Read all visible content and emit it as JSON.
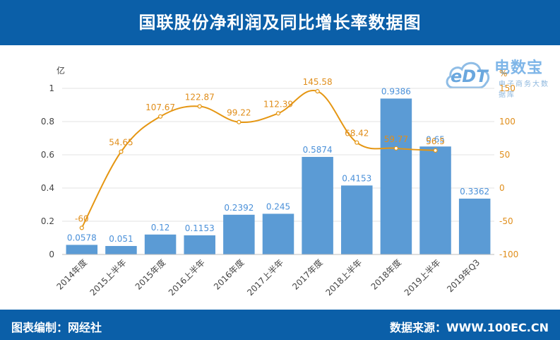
{
  "header": {
    "title": "国联股份净利润及同比增长率数据图"
  },
  "footer": {
    "left": "图表编制：网经社",
    "right": "数据来源：WWW.100EC.CN"
  },
  "logo": {
    "brand": "电数宝",
    "sub": "电子商务大数据库",
    "mark": "eDT"
  },
  "colors": {
    "bar": "#5b9bd5",
    "line": "#e59612",
    "header": "#0b5fa8"
  },
  "chart_data": {
    "type": "bar",
    "title": "国联股份净利润及同比增长率数据图",
    "categories": [
      "2014年度",
      "2015上半年",
      "2015年度",
      "2016上半年",
      "2016年度",
      "2017上半年",
      "2017年度",
      "2018上半年",
      "2018年度",
      "2019上半年",
      "2019年Q3"
    ],
    "series": [
      {
        "type": "bar",
        "axis": "left",
        "values": [
          0.0578,
          0.051,
          0.12,
          0.1153,
          0.2392,
          0.245,
          0.5874,
          0.4153,
          0.9386,
          0.65,
          0.3362
        ],
        "labels": [
          "0.0578",
          "0.051",
          "0.12",
          "0.1153",
          "0.2392",
          "0.245",
          "0.5874",
          "0.4153",
          "0.9386",
          "0.65",
          "0.3362"
        ]
      },
      {
        "type": "line",
        "axis": "right",
        "values": [
          -60,
          54.65,
          107.67,
          122.87,
          99.22,
          112.39,
          145.58,
          68.42,
          59.77,
          56.5,
          null
        ],
        "labels": [
          "-60",
          "54.65",
          "107.67",
          "122.87",
          "99.22",
          "112.39",
          "145.58",
          "68.42",
          "59.77",
          "56.5",
          ""
        ]
      }
    ],
    "left_axis": {
      "unit": "亿",
      "min": 0,
      "max": 1,
      "ticks": [
        "0",
        "0.2",
        "0.4",
        "0.6",
        "0.8",
        "1"
      ]
    },
    "right_axis": {
      "unit": "%",
      "min": -100,
      "max": 150,
      "ticks": [
        "-100",
        "-50",
        "0",
        "50",
        "100",
        "150"
      ]
    },
    "grid": true
  }
}
